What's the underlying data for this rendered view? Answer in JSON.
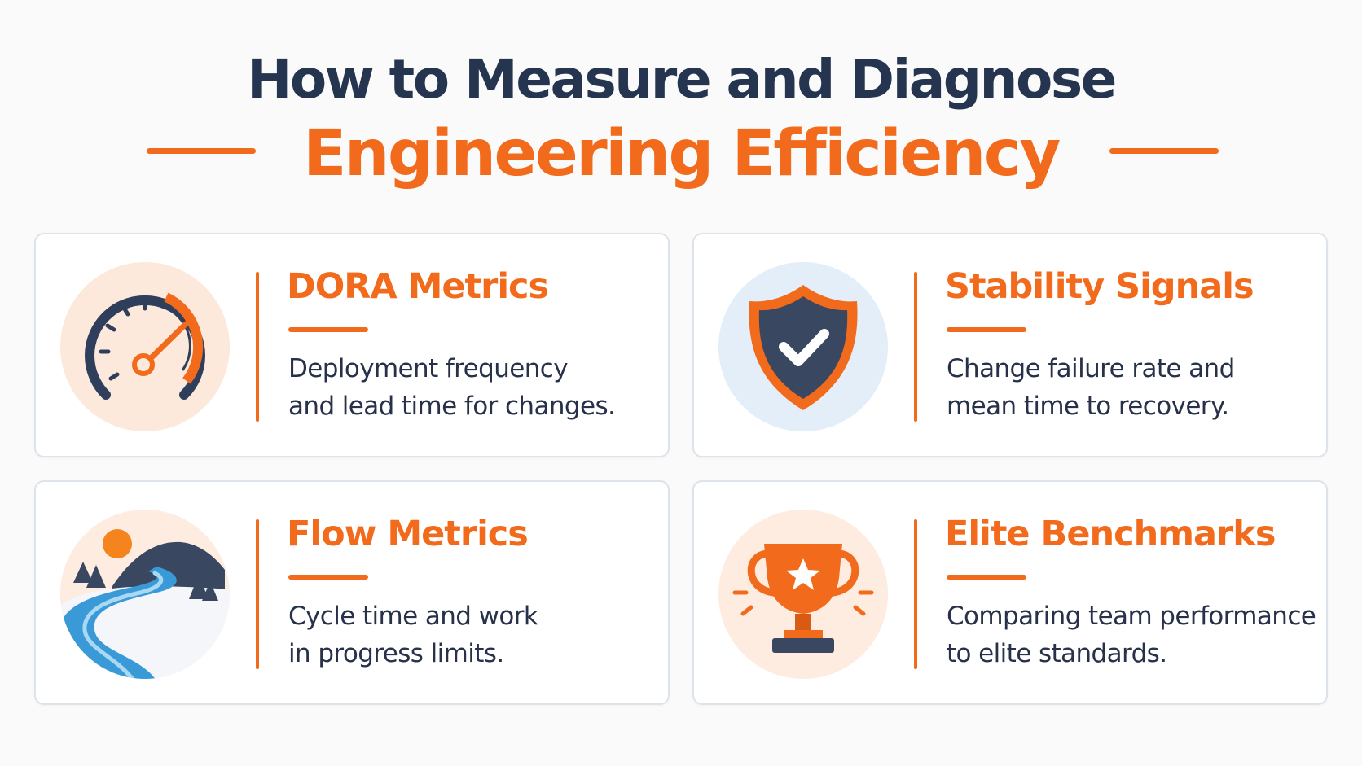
{
  "header": {
    "title_line1": "How to Measure and Diagnose",
    "title_line2": "Engineering Efficiency"
  },
  "cards": [
    {
      "title": "DORA Metrics",
      "desc_line1": "Deployment frequency",
      "desc_line2": "and lead time for changes.",
      "icon": "speedometer-icon"
    },
    {
      "title": "Stability Signals",
      "desc_line1": "Change failure rate and",
      "desc_line2": "mean time to recovery.",
      "icon": "shield-check-icon"
    },
    {
      "title": "Flow Metrics",
      "desc_line1": "Cycle time and work",
      "desc_line2": "in progress limits.",
      "icon": "river-landscape-icon"
    },
    {
      "title": "Elite Benchmarks",
      "desc_line1": "Comparing team performance",
      "desc_line2": "to elite standards.",
      "icon": "trophy-icon"
    }
  ],
  "colors": {
    "accent": "#f26a1b",
    "navy": "#25344f",
    "text": "#27324a",
    "card_border": "#dde3ea"
  }
}
